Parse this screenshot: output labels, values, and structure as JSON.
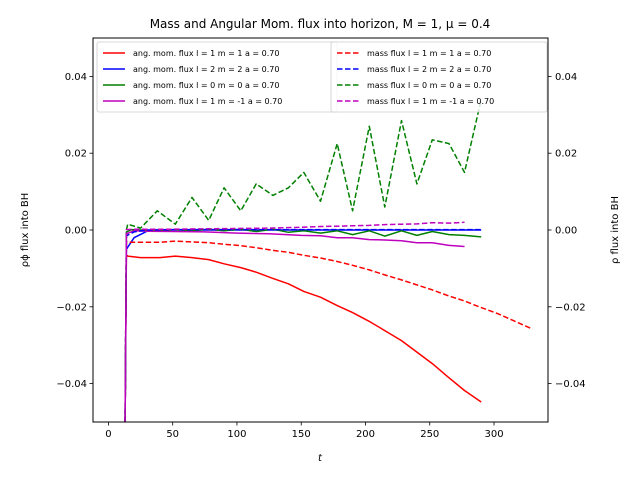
{
  "chart_data": {
    "type": "line",
    "title": "Mass and Angular Mom. flux into horizon, M = 1, μ = 0.4",
    "xlabel": "t",
    "ylabel_left": "ρϕ flux into BH",
    "ylabel_right": "ρ flux into BH",
    "xlim": [
      -12,
      342
    ],
    "ylim": [
      -0.05,
      0.05
    ],
    "xticks": [
      0,
      50,
      100,
      150,
      200,
      250,
      300
    ],
    "yticks": [
      -0.04,
      -0.02,
      0.0,
      0.02,
      0.04
    ],
    "ytick_labels": [
      "−0.04",
      "−0.02",
      "0.00",
      "0.02",
      "0.04"
    ],
    "grid": false,
    "legend_left": [
      "ang. mom. flux l = 1 m = 1 a = 0.70",
      "ang. mom. flux l = 2 m = 2 a = 0.70",
      "ang. mom. flux l = 0 m = 0 a = 0.70",
      "ang. mom. flux l = 1 m = -1 a = 0.70"
    ],
    "legend_right": [
      "mass flux l = 1 m = 1 a = 0.70",
      "mass flux l = 2 m = 2 a = 0.70",
      "mass flux l = 0 m = 0 a = 0.70",
      "mass flux l = 1 m = -1 a = 0.70"
    ],
    "series": [
      {
        "name": "ang. mom. flux l = 1 m = 1 a = 0.70",
        "color": "#ff0000",
        "dash": "solid",
        "x": [
          13,
          14,
          15,
          25,
          40,
          52,
          65,
          78,
          90,
          103,
          115,
          128,
          140,
          152,
          165,
          178,
          190,
          203,
          215,
          228,
          240,
          252,
          265,
          277,
          290
        ],
        "y": [
          -0.05,
          -0.0065,
          -0.0068,
          -0.0072,
          -0.0072,
          -0.0068,
          -0.0072,
          -0.0077,
          -0.0088,
          -0.0098,
          -0.011,
          -0.0126,
          -0.014,
          -0.016,
          -0.0175,
          -0.0197,
          -0.0215,
          -0.0238,
          -0.0262,
          -0.0288,
          -0.0318,
          -0.0348,
          -0.0385,
          -0.0418,
          -0.0448
        ]
      },
      {
        "name": "ang. mom. flux l = 2 m = 2 a = 0.70",
        "color": "#0000ff",
        "dash": "solid",
        "x": [
          13,
          14,
          20,
          30,
          50,
          100,
          150,
          200,
          250,
          290
        ],
        "y": [
          -0.05,
          -0.005,
          -0.002,
          -0.0003,
          0.0,
          0.0,
          0.0,
          0.0,
          0.0,
          0.0
        ]
      },
      {
        "name": "ang. mom. flux l = 0 m = 0 a = 0.70",
        "color": "#008000",
        "dash": "solid",
        "x": [
          13,
          14,
          18,
          25,
          38,
          52,
          65,
          78,
          90,
          103,
          115,
          128,
          140,
          152,
          165,
          178,
          190,
          203,
          215,
          228,
          240,
          252,
          265,
          277,
          290
        ],
        "y": [
          -0.05,
          -0.0005,
          0.0001,
          0.0,
          -0.0001,
          0.0001,
          -0.0002,
          0.0002,
          -0.0002,
          0.0002,
          -0.0004,
          0.0002,
          -0.0006,
          -0.0002,
          -0.0008,
          -0.0002,
          -0.0012,
          -0.0002,
          -0.0016,
          -0.0002,
          -0.0014,
          -0.0004,
          -0.0012,
          -0.0014,
          -0.0018
        ]
      },
      {
        "name": "ang. mom. flux l = 1 m = -1 a = 0.70",
        "color": "#bf00bf",
        "dash": "solid",
        "x": [
          13,
          14,
          20,
          30,
          50,
          75,
          100,
          125,
          150,
          165,
          178,
          190,
          203,
          215,
          228,
          240,
          252,
          265,
          277
        ],
        "y": [
          -0.05,
          -0.001,
          -0.0002,
          -0.0003,
          -0.0004,
          -0.0005,
          -0.0008,
          -0.001,
          -0.0014,
          -0.0015,
          -0.002,
          -0.002,
          -0.0025,
          -0.0026,
          -0.0028,
          -0.0033,
          -0.0033,
          -0.004,
          -0.0043
        ]
      },
      {
        "name": "mass flux l = 1 m = 1 a = 0.70",
        "color": "#ff0000",
        "dash": "dashed",
        "x": [
          13,
          14,
          15,
          25,
          40,
          52,
          65,
          78,
          90,
          103,
          115,
          128,
          140,
          152,
          165,
          178,
          190,
          203,
          215,
          228,
          240,
          252,
          265,
          277,
          290,
          303,
          315,
          330
        ],
        "y": [
          -0.05,
          -0.003,
          -0.0032,
          -0.0032,
          -0.0032,
          -0.0029,
          -0.0031,
          -0.0033,
          -0.0037,
          -0.0041,
          -0.0046,
          -0.0053,
          -0.0058,
          -0.0066,
          -0.0073,
          -0.0082,
          -0.0092,
          -0.0104,
          -0.0117,
          -0.013,
          -0.0143,
          -0.0156,
          -0.0172,
          -0.0185,
          -0.0202,
          -0.0218,
          -0.0236,
          -0.0258
        ]
      },
      {
        "name": "mass flux l = 2 m = 2 a = 0.70",
        "color": "#0000ff",
        "dash": "dashed",
        "x": [
          13,
          14,
          20,
          30,
          50,
          100,
          150,
          200,
          250,
          290
        ],
        "y": [
          -0.05,
          -0.0015,
          -0.0005,
          0.0,
          0.0001,
          0.0001,
          0.0001,
          0.0001,
          0.0001,
          0.0001
        ]
      },
      {
        "name": "mass flux l = 0 m = 0 a = 0.70",
        "color": "#008000",
        "dash": "dashed",
        "x": [
          13,
          14,
          15,
          25,
          38,
          52,
          65,
          78,
          90,
          103,
          115,
          128,
          140,
          152,
          165,
          178,
          190,
          203,
          215,
          228,
          240,
          252,
          265,
          277,
          290
        ],
        "y": [
          -0.05,
          0.0,
          0.0015,
          0.0005,
          0.005,
          0.0015,
          0.0085,
          0.0025,
          0.011,
          0.005,
          0.012,
          0.009,
          0.011,
          0.015,
          0.0075,
          0.0225,
          0.005,
          0.027,
          0.006,
          0.0285,
          0.012,
          0.0235,
          0.0225,
          0.015,
          0.034
        ]
      },
      {
        "name": "mass flux l = 1 m = -1 a = 0.70",
        "color": "#bf00bf",
        "dash": "dashed",
        "x": [
          13,
          14,
          20,
          30,
          50,
          75,
          100,
          125,
          150,
          165,
          178,
          190,
          203,
          215,
          228,
          240,
          252,
          265,
          277
        ],
        "y": [
          -0.05,
          0.0001,
          0.0002,
          0.0002,
          0.0002,
          0.0003,
          0.0004,
          0.0005,
          0.0007,
          0.0009,
          0.001,
          0.0011,
          0.0012,
          0.0014,
          0.0015,
          0.0016,
          0.0019,
          0.0018,
          0.002
        ]
      }
    ]
  }
}
